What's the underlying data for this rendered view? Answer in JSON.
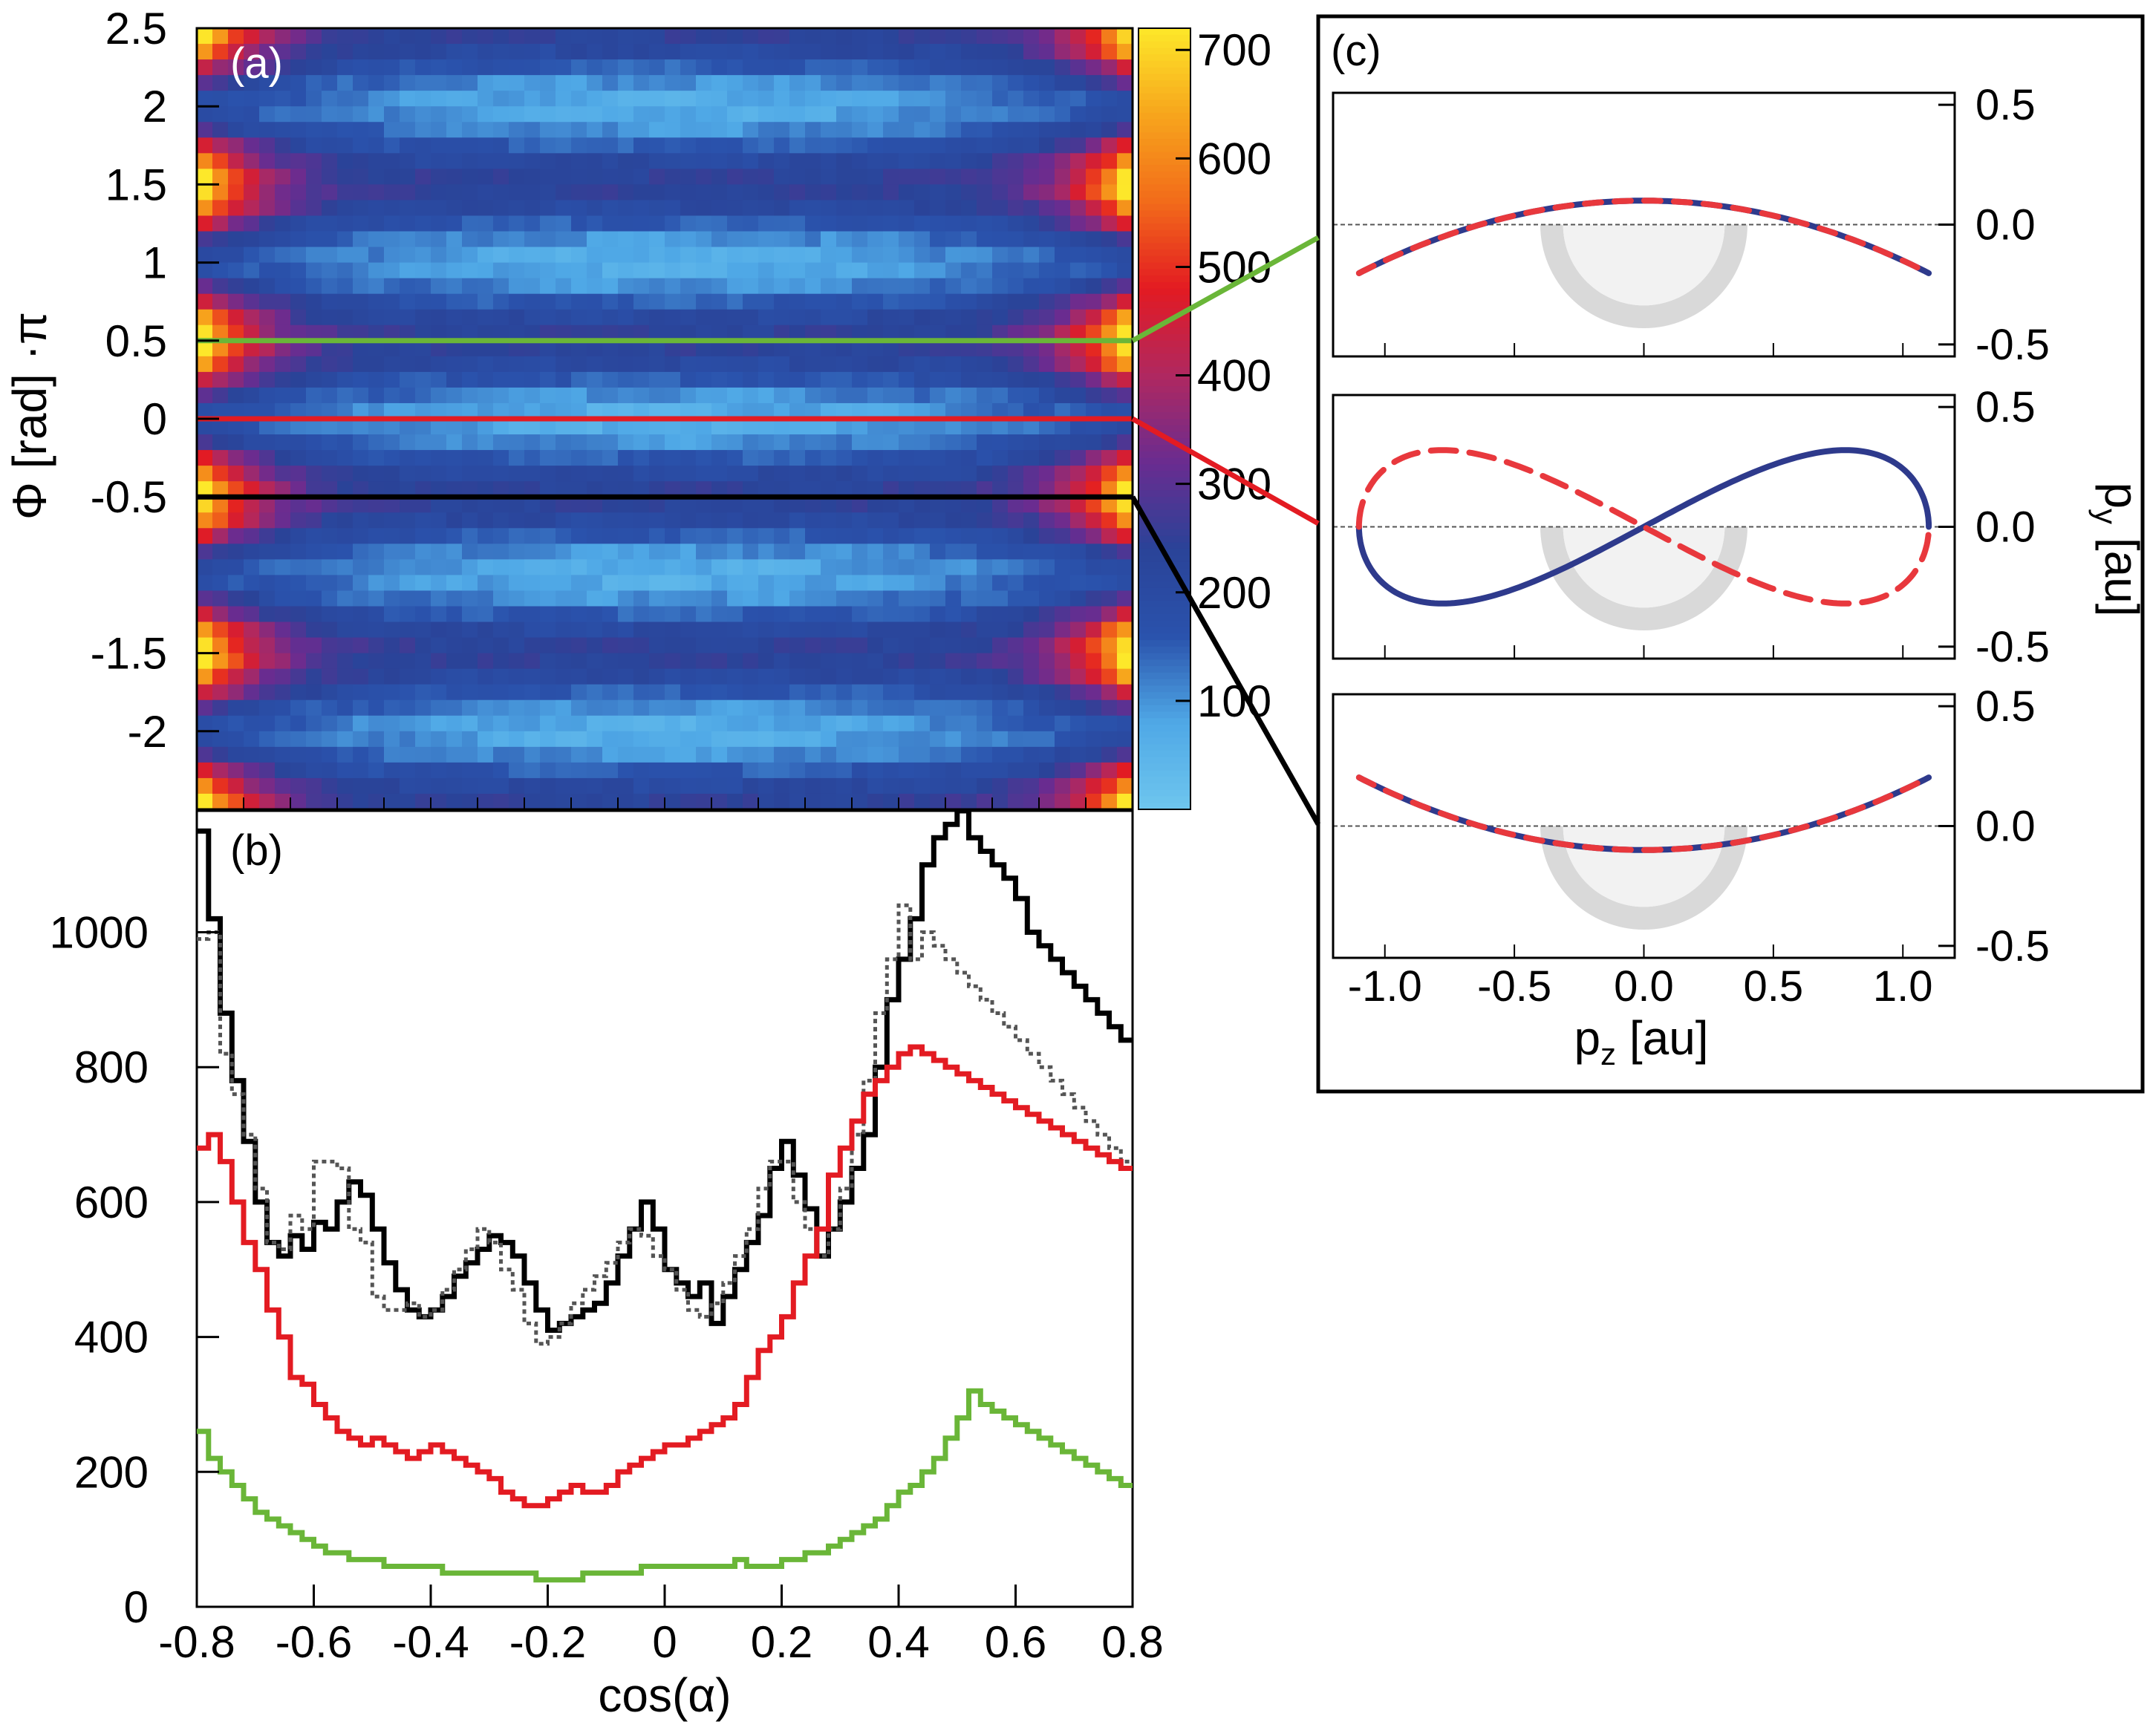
{
  "chart_data": [
    {
      "panel": "(a)",
      "type": "heatmap",
      "label_color": "#ffffff",
      "ylabel": "Φ [rad] ·π",
      "xlim": [
        -0.8,
        0.8
      ],
      "ylim": [
        -2.5,
        2.5
      ],
      "yticks": [
        "2.5",
        "2",
        "1.5",
        "1",
        "0.5",
        "0",
        "-0.5",
        "-1.5",
        "-2"
      ],
      "ytick_values": [
        2.5,
        2,
        1.5,
        1,
        0.5,
        0,
        -0.5,
        -1.5,
        -2
      ],
      "colorbar": {
        "range": [
          0,
          720
        ],
        "ticks": [
          "700",
          "600",
          "500",
          "400",
          "300",
          "200",
          "100"
        ],
        "tick_values": [
          700,
          600,
          500,
          400,
          300,
          200,
          100
        ],
        "colors": [
          "#6ec6ee",
          "#4fa8e6",
          "#2a52ac",
          "#2a4398",
          "#6a2c90",
          "#b02860",
          "#e31b22",
          "#f26b1a",
          "#f7a51c",
          "#fde82a"
        ]
      },
      "bins": {
        "nx": 60,
        "ny": 50
      },
      "cut_lines": [
        {
          "phi": 0.5,
          "color": "#6ab638"
        },
        {
          "phi": 0,
          "color": "#e31b22"
        },
        {
          "phi": -0.5,
          "color": "#000000"
        }
      ]
    },
    {
      "panel": "(b)",
      "type": "line",
      "xlabel": "cos(α)",
      "xlim": [
        -0.8,
        0.8
      ],
      "ylim": [
        0,
        1180
      ],
      "xticks": [
        "-0.8",
        "-0.6",
        "-0.4",
        "-0.2",
        "0",
        "0.2",
        "0.4",
        "0.6",
        "0.8"
      ],
      "xtick_values": [
        -0.8,
        -0.6,
        -0.4,
        -0.2,
        0,
        0.2,
        0.4,
        0.6,
        0.8
      ],
      "yticks": [
        "0",
        "200",
        "400",
        "600",
        "800",
        "1000"
      ],
      "ytick_values": [
        0,
        200,
        400,
        600,
        800,
        1000
      ],
      "x": [
        -0.8,
        -0.78,
        -0.76,
        -0.74,
        -0.72,
        -0.7,
        -0.68,
        -0.66,
        -0.64,
        -0.62,
        -0.6,
        -0.58,
        -0.56,
        -0.54,
        -0.52,
        -0.5,
        -0.48,
        -0.46,
        -0.44,
        -0.42,
        -0.4,
        -0.38,
        -0.36,
        -0.34,
        -0.32,
        -0.3,
        -0.28,
        -0.26,
        -0.24,
        -0.22,
        -0.2,
        -0.18,
        -0.16,
        -0.14,
        -0.12,
        -0.1,
        -0.08,
        -0.06,
        -0.04,
        -0.02,
        0,
        0.02,
        0.04,
        0.06,
        0.08,
        0.1,
        0.12,
        0.14,
        0.16,
        0.18,
        0.2,
        0.22,
        0.24,
        0.26,
        0.28,
        0.3,
        0.32,
        0.34,
        0.36,
        0.38,
        0.4,
        0.42,
        0.44,
        0.46,
        0.48,
        0.5,
        0.52,
        0.54,
        0.56,
        0.58,
        0.6,
        0.62,
        0.64,
        0.66,
        0.68,
        0.7,
        0.72,
        0.74,
        0.76,
        0.78
      ],
      "series": [
        {
          "color": "#000000",
          "style": "solid",
          "values": [
            1150,
            1020,
            880,
            780,
            690,
            600,
            540,
            520,
            550,
            530,
            570,
            560,
            600,
            630,
            610,
            560,
            510,
            470,
            440,
            430,
            440,
            460,
            490,
            510,
            530,
            550,
            540,
            520,
            480,
            440,
            410,
            420,
            430,
            440,
            450,
            480,
            520,
            560,
            600,
            560,
            500,
            480,
            460,
            480,
            420,
            460,
            500,
            540,
            580,
            650,
            690,
            640,
            590,
            520,
            560,
            600,
            650,
            700,
            800,
            900,
            960,
            1020,
            1100,
            1140,
            1160,
            1200,
            1140,
            1120,
            1100,
            1080,
            1050,
            1000,
            980,
            960,
            940,
            920,
            900,
            880,
            860,
            840
          ]
        },
        {
          "color": "#555555",
          "style": "dotted",
          "values": [
            990,
            1000,
            820,
            760,
            700,
            620,
            540,
            530,
            580,
            560,
            660,
            660,
            650,
            560,
            540,
            460,
            440,
            440,
            450,
            430,
            440,
            470,
            500,
            530,
            560,
            540,
            500,
            470,
            420,
            390,
            400,
            420,
            450,
            470,
            490,
            510,
            540,
            560,
            550,
            520,
            500,
            470,
            440,
            430,
            450,
            480,
            520,
            560,
            620,
            660,
            660,
            600,
            560,
            520,
            560,
            620,
            700,
            780,
            880,
            960,
            1040,
            960,
            1000,
            980,
            960,
            940,
            920,
            900,
            880,
            860,
            840,
            820,
            800,
            780,
            760,
            740,
            720,
            700,
            680,
            660
          ]
        },
        {
          "color": "#e31b22",
          "style": "solid",
          "values": [
            680,
            700,
            660,
            600,
            540,
            500,
            440,
            400,
            340,
            330,
            300,
            280,
            260,
            250,
            240,
            250,
            240,
            230,
            220,
            230,
            240,
            230,
            220,
            210,
            200,
            190,
            170,
            160,
            150,
            150,
            160,
            170,
            180,
            170,
            170,
            180,
            200,
            210,
            220,
            230,
            240,
            240,
            250,
            260,
            270,
            280,
            300,
            340,
            380,
            400,
            430,
            480,
            520,
            560,
            640,
            680,
            720,
            760,
            780,
            800,
            820,
            830,
            820,
            810,
            800,
            790,
            780,
            770,
            760,
            750,
            740,
            730,
            720,
            710,
            700,
            690,
            680,
            670,
            660,
            650
          ]
        },
        {
          "color": "#6ab638",
          "style": "solid",
          "values": [
            260,
            220,
            200,
            180,
            160,
            140,
            130,
            120,
            110,
            100,
            90,
            80,
            80,
            70,
            70,
            70,
            60,
            60,
            60,
            60,
            60,
            50,
            50,
            50,
            50,
            50,
            50,
            50,
            50,
            40,
            40,
            40,
            40,
            50,
            50,
            50,
            50,
            50,
            60,
            60,
            60,
            60,
            60,
            60,
            60,
            60,
            70,
            60,
            60,
            60,
            70,
            70,
            80,
            80,
            90,
            100,
            110,
            120,
            130,
            150,
            170,
            180,
            200,
            220,
            250,
            280,
            320,
            300,
            290,
            280,
            270,
            260,
            250,
            240,
            230,
            220,
            210,
            200,
            190,
            180
          ]
        }
      ]
    },
    {
      "panel": "(c)",
      "type": "line",
      "xlabel": "p",
      "xlabel_sub": "z",
      "xlabel_unit": " [au]",
      "ylabel": "p",
      "ylabel_sub": "y",
      "ylabel_unit": " [au]",
      "xlim": [
        -1.2,
        1.2
      ],
      "ylim": [
        -0.55,
        0.55
      ],
      "xticks": [
        "-1.0",
        "-0.5",
        "0.0",
        "0.5",
        "1.0"
      ],
      "xtick_values": [
        -1.0,
        -0.5,
        0.0,
        0.5,
        1.0
      ],
      "yticks": [
        "0.5",
        "0.0",
        "-0.5"
      ],
      "ytick_values": [
        0.5,
        0.0,
        -0.5
      ],
      "series_colors": {
        "blue": "#2e3a8c",
        "red": "#e8383d",
        "shade": "#d9d9d9"
      },
      "subpanels": [
        {
          "connector_color": "#6ab638",
          "trajectory": "arch_up"
        },
        {
          "connector_color": "#e31b22",
          "trajectory": "figure_eight"
        },
        {
          "connector_color": "#000000",
          "trajectory": "arch_down"
        }
      ]
    }
  ]
}
